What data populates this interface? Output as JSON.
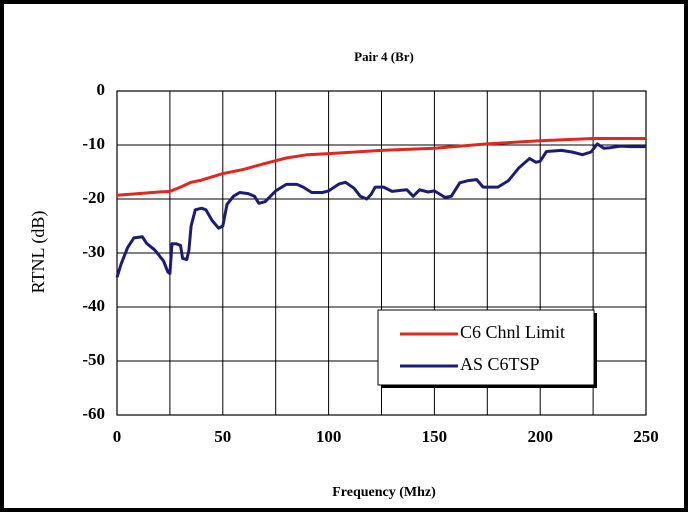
{
  "chart_data": {
    "type": "line",
    "title": "Pair 4 (Br)",
    "x_label": "Frequency (Mhz)",
    "y_label": "RTNL (dB)",
    "xlim": [
      0,
      250
    ],
    "xticks": [
      0,
      50,
      100,
      150,
      200,
      250
    ],
    "x_minor_grid": [
      25,
      75,
      125,
      175,
      225
    ],
    "ylim": [
      -60,
      0
    ],
    "yticks": [
      -60,
      -50,
      -40,
      -30,
      -20,
      -10,
      0
    ],
    "grid": true,
    "legend": "lower-right",
    "series": [
      {
        "name": "C6 Chnl Limit",
        "color": "#e0281e",
        "x": [
          0,
          10,
          20,
          25,
          30,
          35,
          40,
          50,
          60,
          70,
          80,
          90,
          100,
          125,
          150,
          175,
          200,
          225,
          250
        ],
        "values": [
          -19.3,
          -19,
          -18.7,
          -18.6,
          -17.8,
          -16.9,
          -16.5,
          -15.3,
          -14.5,
          -13.4,
          -12.4,
          -11.8,
          -11.6,
          -11,
          -10.6,
          -9.8,
          -9.2,
          -8.8,
          -8.8
        ]
      },
      {
        "name": "AS C6TSP",
        "color": "#1c1c78",
        "x": [
          0,
          2,
          5,
          8,
          12,
          14,
          18,
          22,
          24,
          25,
          26,
          28,
          30,
          31,
          33,
          34,
          35,
          37,
          40,
          42,
          45,
          48,
          50,
          52,
          55,
          58,
          62,
          65,
          67,
          70,
          75,
          80,
          85,
          88,
          92,
          97,
          100,
          105,
          108,
          112,
          115,
          118,
          120,
          122,
          126,
          130,
          134,
          137,
          140,
          143,
          147,
          150,
          155,
          158,
          162,
          166,
          170,
          173,
          180,
          185,
          190,
          195,
          198,
          200,
          203,
          210,
          215,
          220,
          224,
          227,
          230,
          233,
          238,
          243,
          250
        ],
        "values": [
          -34.5,
          -32,
          -29,
          -27.2,
          -27,
          -28.2,
          -29.5,
          -31.5,
          -33.5,
          -33.8,
          -28.3,
          -28.3,
          -28.6,
          -31,
          -31.2,
          -29.5,
          -25,
          -22,
          -21.7,
          -22,
          -24,
          -25.4,
          -25,
          -21,
          -19.5,
          -18.8,
          -19,
          -19.5,
          -20.8,
          -20.5,
          -18.5,
          -17.3,
          -17.3,
          -17.8,
          -18.8,
          -18.8,
          -18.5,
          -17.2,
          -16.9,
          -18,
          -19.5,
          -20,
          -19.2,
          -17.8,
          -17.8,
          -18.6,
          -18.4,
          -18.3,
          -19.5,
          -18.3,
          -18.7,
          -18.5,
          -19.7,
          -19.5,
          -17,
          -16.6,
          -16.4,
          -17.8,
          -17.8,
          -16.6,
          -14.2,
          -12.5,
          -13.2,
          -13,
          -11.2,
          -11,
          -11.3,
          -11.8,
          -11.3,
          -9.8,
          -10.6,
          -10.5,
          -10.2,
          -10.3,
          -10.3
        ]
      }
    ]
  }
}
